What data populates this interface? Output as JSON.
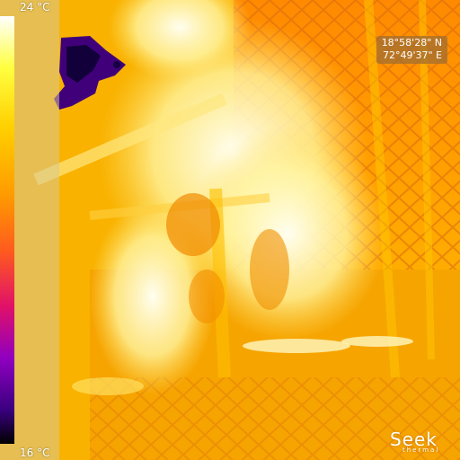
{
  "scale": {
    "max_label": "24 °C",
    "min_label": "16 °C",
    "palette": [
      "#ffffff",
      "#ffff40",
      "#ffd000",
      "#ff9a00",
      "#ff5a1e",
      "#e0106a",
      "#9000c0",
      "#3a0080",
      "#000000"
    ]
  },
  "gps": {
    "latitude": "18°58'28\" N",
    "longitude": "72°49'37\" E"
  },
  "brand": {
    "name": "Seek",
    "subtitle": "thermal"
  },
  "colors": {
    "background_orange": "#f4a000",
    "hot_white": "#fffbe0",
    "cold_purple": "#40007a"
  }
}
